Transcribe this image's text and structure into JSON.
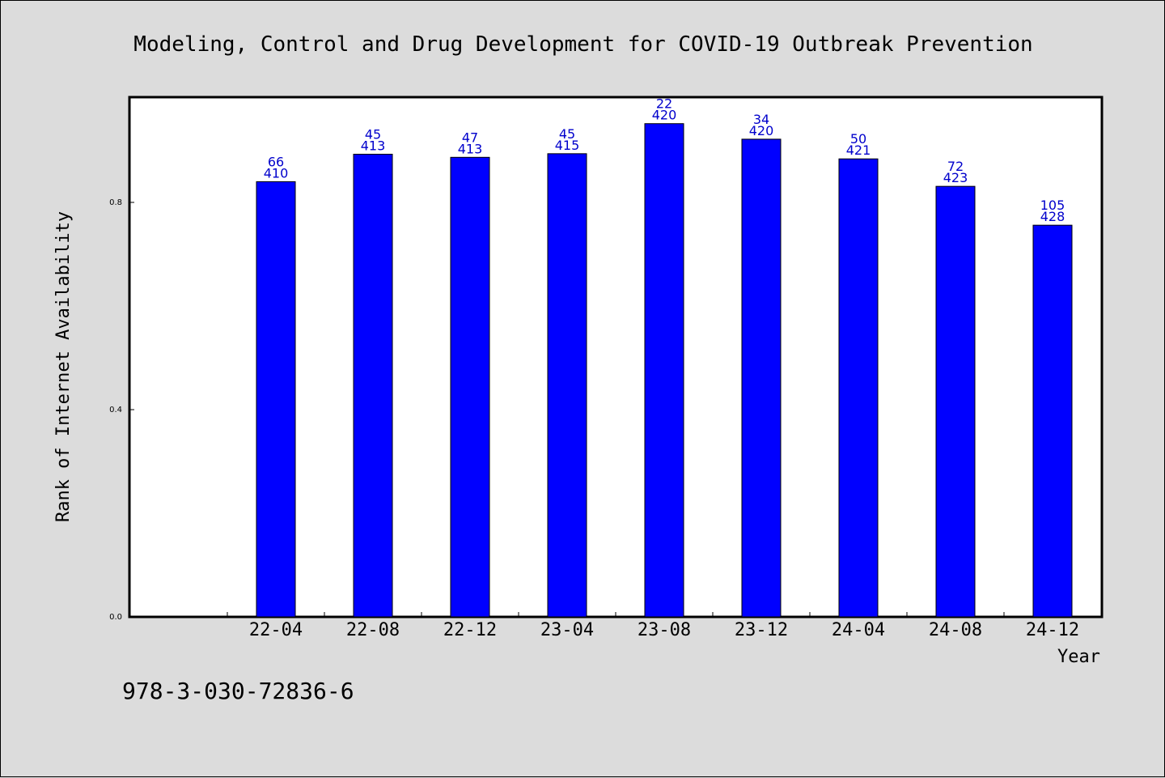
{
  "chart_data": {
    "type": "bar",
    "title": "Modeling, Control and Drug Development for COVID-19 Outbreak Prevention",
    "xlabel": "Year",
    "ylabel": "Rank of Internet Availability",
    "categories": [
      "22-04",
      "22-08",
      "22-12",
      "23-04",
      "23-08",
      "23-12",
      "24-04",
      "24-08",
      "24-12"
    ],
    "values": [
      0.84,
      0.893,
      0.887,
      0.894,
      0.952,
      0.922,
      0.884,
      0.831,
      0.756
    ],
    "labels_top": [
      "66",
      "45",
      "47",
      "45",
      "22",
      "34",
      "50",
      "72",
      "105"
    ],
    "labels_bottom": [
      "410",
      "413",
      "413",
      "415",
      "420",
      "420",
      "421",
      "423",
      "428"
    ],
    "yticks": [
      0.0,
      0.4,
      0.8
    ],
    "ytick_labels": [
      "0.0",
      "0.4",
      "0.8"
    ],
    "ylim": [
      0,
      1.0
    ],
    "grid": false,
    "colors": {
      "bar": "#0000ff",
      "data_label": "#0000cc",
      "background": "#dcdcdc",
      "plot_background": "#ffffff"
    }
  },
  "footer": {
    "isbn": "978-3-030-72836-6"
  }
}
